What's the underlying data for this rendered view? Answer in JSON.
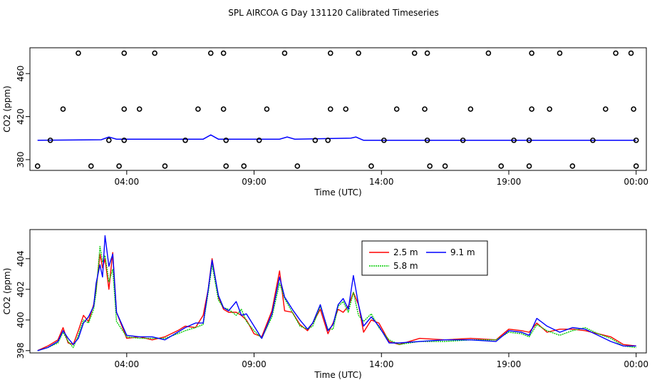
{
  "title": "SPL AIRCOA G  Day 131120  Calibrated Timeseries",
  "chart_data": [
    {
      "type": "scatter",
      "xlabel": "Time (UTC)",
      "ylabel": "CO2 (ppm)",
      "xlim": [
        0.2,
        24.4
      ],
      "ylim": [
        370,
        484
      ],
      "xticks": [
        {
          "value": 4,
          "label": "04:00"
        },
        {
          "value": 9,
          "label": "09:00"
        },
        {
          "value": 14,
          "label": "14:00"
        },
        {
          "value": 19,
          "label": "19:00"
        },
        {
          "value": 24,
          "label": "00:00"
        }
      ],
      "yticks": [
        380,
        420,
        460
      ],
      "calibration_points": [
        {
          "x": 2.1,
          "y": 479
        },
        {
          "x": 3.9,
          "y": 479
        },
        {
          "x": 5.1,
          "y": 479
        },
        {
          "x": 7.3,
          "y": 479
        },
        {
          "x": 7.8,
          "y": 479
        },
        {
          "x": 10.2,
          "y": 479
        },
        {
          "x": 12.0,
          "y": 479
        },
        {
          "x": 13.1,
          "y": 479
        },
        {
          "x": 15.3,
          "y": 479
        },
        {
          "x": 15.8,
          "y": 479
        },
        {
          "x": 18.2,
          "y": 479
        },
        {
          "x": 19.9,
          "y": 479
        },
        {
          "x": 21.0,
          "y": 479
        },
        {
          "x": 23.2,
          "y": 479
        },
        {
          "x": 23.8,
          "y": 479
        },
        {
          "x": 1.5,
          "y": 427
        },
        {
          "x": 3.9,
          "y": 427
        },
        {
          "x": 4.5,
          "y": 427
        },
        {
          "x": 6.8,
          "y": 427
        },
        {
          "x": 7.8,
          "y": 427
        },
        {
          "x": 9.5,
          "y": 427
        },
        {
          "x": 12.0,
          "y": 427
        },
        {
          "x": 12.6,
          "y": 427
        },
        {
          "x": 14.6,
          "y": 427
        },
        {
          "x": 15.7,
          "y": 427
        },
        {
          "x": 17.5,
          "y": 427
        },
        {
          "x": 19.9,
          "y": 427
        },
        {
          "x": 20.6,
          "y": 427
        },
        {
          "x": 22.8,
          "y": 427
        },
        {
          "x": 23.9,
          "y": 427
        },
        {
          "x": 1.0,
          "y": 398
        },
        {
          "x": 3.3,
          "y": 398
        },
        {
          "x": 3.9,
          "y": 398
        },
        {
          "x": 6.3,
          "y": 398
        },
        {
          "x": 7.9,
          "y": 398
        },
        {
          "x": 9.2,
          "y": 398
        },
        {
          "x": 11.4,
          "y": 398
        },
        {
          "x": 11.9,
          "y": 398
        },
        {
          "x": 14.1,
          "y": 398
        },
        {
          "x": 15.8,
          "y": 398
        },
        {
          "x": 17.2,
          "y": 398
        },
        {
          "x": 19.2,
          "y": 398
        },
        {
          "x": 19.8,
          "y": 398
        },
        {
          "x": 22.3,
          "y": 398
        },
        {
          "x": 24.0,
          "y": 398
        },
        {
          "x": 0.5,
          "y": 374
        },
        {
          "x": 2.6,
          "y": 374
        },
        {
          "x": 3.7,
          "y": 374
        },
        {
          "x": 5.5,
          "y": 374
        },
        {
          "x": 7.9,
          "y": 374
        },
        {
          "x": 8.6,
          "y": 374
        },
        {
          "x": 10.7,
          "y": 374
        },
        {
          "x": 13.6,
          "y": 374
        },
        {
          "x": 15.9,
          "y": 374
        },
        {
          "x": 16.5,
          "y": 374
        },
        {
          "x": 18.7,
          "y": 374
        },
        {
          "x": 19.8,
          "y": 374
        },
        {
          "x": 21.5,
          "y": 374
        },
        {
          "x": 24.0,
          "y": 374
        }
      ],
      "series_line": {
        "name": "CO2 timeseries",
        "color": "#0000ff",
        "x": [
          0.5,
          3.0,
          3.3,
          3.6,
          7.0,
          7.3,
          7.6,
          10.0,
          10.3,
          10.6,
          12.8,
          13.0,
          13.3,
          14.5,
          24.0
        ],
        "values": [
          398,
          398.5,
          401,
          399,
          399,
          403,
          399,
          399,
          401,
          399,
          400,
          401,
          398,
          398,
          398
        ]
      }
    },
    {
      "type": "line",
      "xlabel": "Time (UTC)",
      "ylabel": "CO2 (ppm)",
      "xlim": [
        0.2,
        24.4
      ],
      "ylim": [
        397.85,
        405.9
      ],
      "xticks": [
        {
          "value": 4,
          "label": "04:00"
        },
        {
          "value": 9,
          "label": "09:00"
        },
        {
          "value": 14,
          "label": "14:00"
        },
        {
          "value": 19,
          "label": "19:00"
        },
        {
          "value": 24,
          "label": "00:00"
        }
      ],
      "yticks": [
        398,
        400,
        402,
        404
      ],
      "legend": {
        "position": "top-center",
        "entries": [
          {
            "name": "2.5 m",
            "color": "#ff0000",
            "style": "solid"
          },
          {
            "name": "5.8 m",
            "color": "#00cc00",
            "style": "dotted"
          },
          {
            "name": "9.1 m",
            "color": "#0000ff",
            "style": "solid"
          }
        ]
      },
      "x": [
        0.5,
        0.9,
        1.3,
        1.5,
        1.7,
        1.9,
        2.1,
        2.3,
        2.5,
        2.7,
        2.8,
        2.95,
        3.05,
        3.15,
        3.3,
        3.45,
        3.6,
        4.0,
        4.5,
        5.0,
        5.5,
        6.0,
        6.3,
        6.7,
        7.0,
        7.2,
        7.35,
        7.6,
        7.8,
        8.0,
        8.3,
        8.5,
        8.7,
        9.0,
        9.3,
        9.7,
        10.0,
        10.2,
        10.5,
        10.8,
        11.1,
        11.3,
        11.6,
        11.9,
        12.1,
        12.3,
        12.5,
        12.7,
        12.9,
        13.1,
        13.3,
        13.6,
        13.9,
        14.3,
        14.7,
        15.5,
        16.5,
        17.5,
        18.5,
        19.0,
        19.5,
        19.8,
        20.1,
        20.5,
        21.0,
        21.5,
        22.0,
        22.5,
        23.0,
        23.5,
        24.0
      ],
      "series": [
        {
          "name": "2.5 m",
          "color": "#ff0000",
          "values": [
            398.0,
            398.3,
            398.7,
            399.5,
            398.5,
            398.4,
            399.3,
            400.3,
            399.9,
            401.0,
            402.0,
            404.3,
            403.4,
            404.0,
            402.0,
            404.4,
            400.5,
            398.8,
            398.9,
            398.7,
            398.9,
            399.3,
            399.6,
            399.5,
            400.3,
            402.0,
            404.0,
            401.5,
            400.7,
            400.5,
            400.5,
            400.3,
            400.0,
            399.1,
            398.9,
            400.6,
            403.2,
            400.6,
            400.5,
            399.7,
            399.3,
            399.8,
            400.7,
            399.1,
            399.8,
            400.7,
            400.5,
            400.9,
            401.8,
            401.0,
            399.2,
            400.0,
            399.8,
            398.6,
            398.4,
            398.8,
            398.7,
            398.8,
            398.7,
            399.4,
            399.3,
            399.2,
            399.8,
            399.2,
            399.4,
            399.4,
            399.3,
            399.1,
            398.9,
            398.4,
            398.3
          ]
        },
        {
          "name": "5.8 m",
          "color": "#00cc00",
          "values": [
            398.0,
            398.2,
            398.5,
            399.2,
            398.6,
            398.2,
            399.0,
            400.0,
            399.8,
            400.7,
            401.8,
            404.8,
            403.8,
            404.2,
            402.5,
            403.3,
            399.9,
            398.9,
            398.8,
            398.8,
            398.8,
            399.1,
            399.3,
            399.5,
            399.7,
            401.8,
            403.6,
            401.3,
            400.8,
            400.7,
            400.3,
            400.7,
            399.9,
            399.3,
            398.8,
            400.2,
            402.4,
            401.4,
            400.5,
            399.6,
            399.4,
            399.6,
            400.9,
            399.4,
            399.4,
            400.9,
            401.2,
            400.5,
            401.8,
            400.3,
            399.9,
            400.4,
            399.5,
            398.7,
            398.4,
            398.6,
            398.6,
            398.7,
            398.7,
            399.2,
            399.1,
            398.9,
            399.7,
            399.3,
            399.0,
            399.3,
            399.5,
            399.1,
            398.8,
            398.3,
            398.2
          ]
        },
        {
          "name": "9.1 m",
          "color": "#0000ff",
          "values": [
            398.0,
            398.2,
            398.6,
            399.3,
            398.8,
            398.4,
            398.8,
            399.8,
            400.2,
            400.9,
            402.4,
            403.6,
            402.8,
            405.5,
            403.5,
            404.3,
            400.5,
            399.0,
            398.9,
            398.9,
            398.7,
            399.2,
            399.5,
            399.8,
            399.8,
            402.0,
            403.9,
            401.6,
            400.8,
            400.6,
            401.2,
            400.3,
            400.4,
            399.6,
            398.8,
            400.4,
            402.8,
            401.5,
            400.7,
            400.0,
            399.4,
            399.8,
            401.0,
            399.3,
            399.7,
            401.0,
            401.4,
            400.7,
            402.9,
            401.0,
            399.6,
            400.2,
            399.6,
            398.5,
            398.5,
            398.6,
            398.7,
            398.7,
            398.6,
            399.3,
            399.2,
            399.0,
            400.1,
            399.6,
            399.2,
            399.5,
            399.4,
            399.0,
            398.6,
            398.3,
            398.3
          ]
        }
      ]
    }
  ]
}
